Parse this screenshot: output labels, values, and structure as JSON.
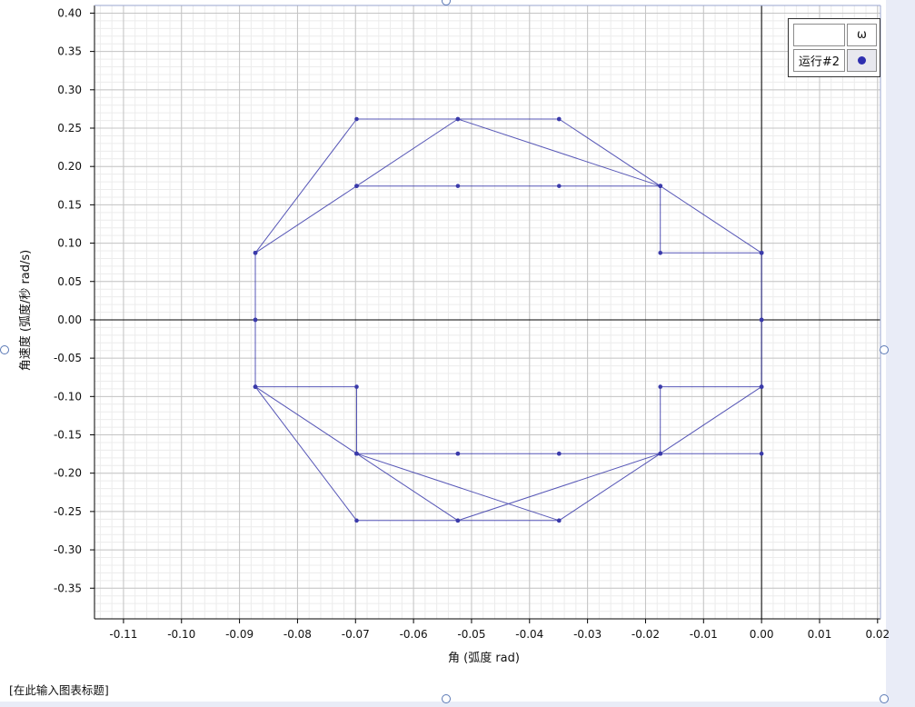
{
  "chart_data": {
    "type": "line",
    "title": "[在此输入图表标题]",
    "xlabel": "角 (弧度 rad)",
    "ylabel": "角速度 (弧度/秒 rad/s)",
    "xlim": [
      -0.115,
      0.0205
    ],
    "ylim": [
      -0.39,
      0.41
    ],
    "x_ticks": [
      "-0.11",
      "-0.10",
      "-0.09",
      "-0.08",
      "-0.07",
      "-0.06",
      "-0.05",
      "-0.04",
      "-0.03",
      "-0.02",
      "-0.01",
      "0.00",
      "0.01",
      "0.02"
    ],
    "y_ticks": [
      "0.40",
      "0.35",
      "0.30",
      "0.25",
      "0.20",
      "0.15",
      "0.10",
      "0.05",
      "0.00",
      "-0.05",
      "-0.10",
      "-0.15",
      "-0.20",
      "-0.25",
      "-0.30",
      "-0.35"
    ],
    "grid": true,
    "legend_position": "top-right",
    "legend": {
      "header": "ω",
      "entries": [
        "运行#2"
      ]
    },
    "series_color": "#3a3aaa",
    "series": [
      {
        "name": "运行#2",
        "points": [
          [
            0.0,
            0.0873
          ],
          [
            -0.01745,
            0.17453
          ],
          [
            -0.05236,
            0.2618
          ],
          [
            -0.06981,
            0.17453
          ],
          [
            -0.08727,
            0.08727
          ],
          [
            -0.08727,
            0.0
          ],
          [
            -0.08727,
            -0.08727
          ],
          [
            -0.06981,
            -0.17453
          ],
          [
            -0.05236,
            -0.2618
          ],
          [
            -0.01745,
            -0.17453
          ],
          [
            0.0,
            -0.08727
          ],
          [
            0.0,
            0.0
          ],
          [
            0.0,
            0.08727
          ],
          [
            -0.01745,
            0.17453
          ],
          [
            -0.03491,
            0.2618
          ],
          [
            -0.06981,
            0.2618
          ],
          [
            -0.08727,
            0.08727
          ],
          [
            -0.06981,
            0.17453
          ],
          [
            -0.05236,
            0.17453
          ],
          [
            -0.03491,
            0.17453
          ],
          [
            -0.01745,
            0.17453
          ],
          [
            -0.01745,
            0.08727
          ],
          [
            0.0,
            0.08727
          ],
          [
            0.0,
            0.0
          ],
          [
            0.0,
            -0.08727
          ],
          [
            -0.01745,
            -0.08727
          ],
          [
            -0.01745,
            -0.17453
          ],
          [
            -0.03491,
            -0.17453
          ],
          [
            -0.05236,
            -0.17453
          ],
          [
            -0.06981,
            -0.17453
          ],
          [
            -0.06981,
            -0.08727
          ],
          [
            -0.08727,
            -0.08727
          ],
          [
            -0.06981,
            -0.2618
          ],
          [
            -0.03491,
            -0.2618
          ],
          [
            -0.01745,
            -0.17453
          ],
          [
            0.0,
            -0.17453
          ],
          [
            -0.01745,
            -0.17453
          ],
          [
            -0.06981,
            -0.17453
          ],
          [
            -0.03491,
            -0.2618
          ],
          [
            -0.05236,
            -0.2618
          ],
          [
            -0.06981,
            -0.17453
          ],
          [
            -0.08727,
            -0.08727
          ],
          [
            -0.08727,
            0.0
          ],
          [
            -0.08727,
            0.08727
          ],
          [
            -0.06981,
            0.17453
          ],
          [
            -0.05236,
            0.2618
          ],
          [
            -0.03491,
            0.2618
          ],
          [
            -0.01745,
            0.17453
          ],
          [
            -0.01745,
            0.17453
          ],
          [
            0.0,
            0.08727
          ],
          [
            0.0,
            0.0
          ],
          [
            0.0,
            -0.08727
          ],
          [
            -0.01745,
            -0.17453
          ],
          [
            -0.03491,
            -0.17453
          ],
          [
            -0.05236,
            -0.17453
          ],
          [
            -0.06981,
            -0.17453
          ]
        ]
      }
    ]
  }
}
